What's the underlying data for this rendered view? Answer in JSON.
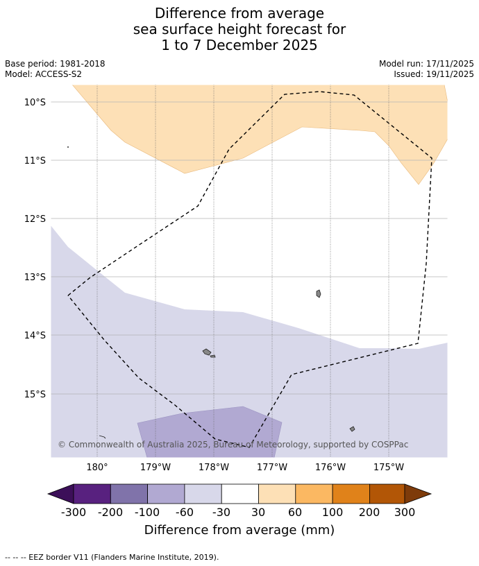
{
  "title": {
    "line1": "Difference from average",
    "line2": "sea surface height forecast for",
    "line3": "1 to 7 December 2025"
  },
  "meta": {
    "base_period": "Base period: 1981-2018",
    "model": "Model: ACCESS-S2",
    "model_run": "Model run: 17/11/2025",
    "issued": "Issued: 19/11/2025"
  },
  "map": {
    "lat_labels": [
      "10°S",
      "11°S",
      "12°S",
      "13°S",
      "14°S",
      "15°S"
    ],
    "lon_labels": [
      "180°",
      "179°W",
      "178°W",
      "177°W",
      "176°W",
      "175°W"
    ],
    "copyright": "© Commonwealth of Australia 2025, Bureau of Meteorology, supported by COSPPac",
    "region_colors": {
      "positive_30_60": "#fde0b6",
      "negative_30_60": "#d8d8ea",
      "negative_60_100": "#b1a9d2"
    }
  },
  "legend": {
    "ticks": [
      "-300",
      "-200",
      "-100",
      "-60",
      "-30",
      "30",
      "60",
      "100",
      "200",
      "300"
    ],
    "label": "Difference from average (mm)",
    "colors": [
      "#3c0f59",
      "#58217f",
      "#8073aa",
      "#b1a9d2",
      "#d8d8ea",
      "#ffffff",
      "#fde0b6",
      "#fbb862",
      "#e0821a",
      "#b25606",
      "#7e3b0a"
    ]
  },
  "footer": {
    "eez_note": "--  --  -- EEZ border V11 (Flanders Marine Institute, 2019)."
  }
}
